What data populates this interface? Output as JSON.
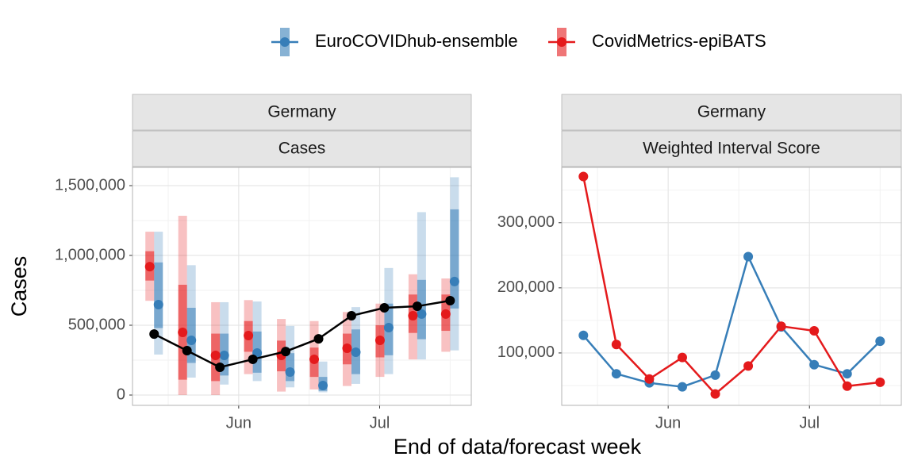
{
  "xlabel": "End of data/forecast week",
  "chart_data": [
    {
      "type": "forecast",
      "facets": [
        "Germany",
        "Cases"
      ],
      "ylabel": "Cases",
      "x": [
        134,
        141,
        148,
        155,
        162,
        169,
        176,
        183,
        190,
        197
      ],
      "xlim": [
        129.4,
        201.5
      ],
      "xticks": [
        {
          "value": 152,
          "label": "Jun"
        },
        {
          "value": 182,
          "label": "Jul"
        }
      ],
      "minor_xticks": [
        137,
        167,
        197
      ],
      "ylim": [
        -73864,
        1630682
      ],
      "yticks": [
        0,
        {
          "value": 500000,
          "label": "500,000"
        },
        {
          "value": 1000000,
          "label": "1,000,000"
        },
        {
          "value": 1500000,
          "label": "1,500,000"
        }
      ],
      "minor_yticks": [
        250000,
        750000,
        1250000
      ],
      "grid": true,
      "observed": {
        "color": "#000000",
        "values": [
          437000,
          318000,
          199000,
          256000,
          312000,
          403000,
          568000,
          625000,
          636000,
          676000
        ]
      },
      "series": [
        {
          "name": "EuroCOVIDhub-ensemble",
          "color": "#377eb8",
          "offset": 1,
          "values": [
            648000,
            392000,
            284000,
            301000,
            165000,
            68000,
            307000,
            483000,
            580000,
            813000
          ],
          "lower90": [
            290000,
            125000,
            75000,
            100000,
            55000,
            20000,
            80000,
            150000,
            255000,
            320000
          ],
          "upper90": [
            1170000,
            930000,
            665000,
            670000,
            495000,
            240000,
            630000,
            910000,
            1310000,
            1560000
          ],
          "lower50": [
            480000,
            230000,
            140000,
            160000,
            100000,
            30000,
            150000,
            285000,
            400000,
            620000
          ],
          "upper50": [
            950000,
            625000,
            440000,
            455000,
            300000,
            130000,
            470000,
            655000,
            825000,
            1330000
          ]
        },
        {
          "name": "CovidMetrics-epiBATS",
          "color": "#e41a1c",
          "offset": -1,
          "values": [
            920000,
            449000,
            284000,
            426000,
            284000,
            256000,
            335000,
            392000,
            568000,
            580000
          ],
          "lower90": [
            675000,
            0,
            0,
            150000,
            25000,
            40000,
            65000,
            130000,
            255000,
            310000
          ],
          "upper90": [
            1170000,
            1284000,
            665000,
            680000,
            545000,
            530000,
            595000,
            655000,
            865000,
            835000
          ],
          "lower50": [
            820000,
            110000,
            100000,
            310000,
            170000,
            130000,
            220000,
            270000,
            445000,
            460000
          ],
          "upper50": [
            1030000,
            790000,
            440000,
            530000,
            390000,
            340000,
            440000,
            500000,
            720000,
            720000
          ]
        }
      ]
    },
    {
      "type": "line",
      "facets": [
        "Germany",
        "Weighted Interval Score"
      ],
      "x": [
        134,
        141,
        148,
        155,
        162,
        169,
        176,
        183,
        190,
        197
      ],
      "xlim": [
        129.4,
        201.5
      ],
      "xticks": [
        {
          "value": 152,
          "label": "Jun"
        },
        {
          "value": 182,
          "label": "Jul"
        }
      ],
      "minor_xticks": [
        137,
        167,
        197
      ],
      "ylim": [
        19500,
        385000
      ],
      "yticks": [
        {
          "value": 100000,
          "label": "100,000"
        },
        {
          "value": 200000,
          "label": "200,000"
        },
        {
          "value": 300000,
          "label": "300,000"
        }
      ],
      "minor_yticks": [
        50000,
        150000,
        250000,
        350000
      ],
      "grid": true,
      "series": [
        {
          "color": "#377eb8",
          "values": [
            127000,
            68000,
            54000,
            48000,
            66000,
            248000,
            140000,
            82000,
            68000,
            118000
          ]
        },
        {
          "color": "#e41a1c",
          "values": [
            371000,
            113000,
            60000,
            93000,
            37000,
            80000,
            141000,
            134000,
            49000,
            55000
          ]
        }
      ]
    }
  ]
}
